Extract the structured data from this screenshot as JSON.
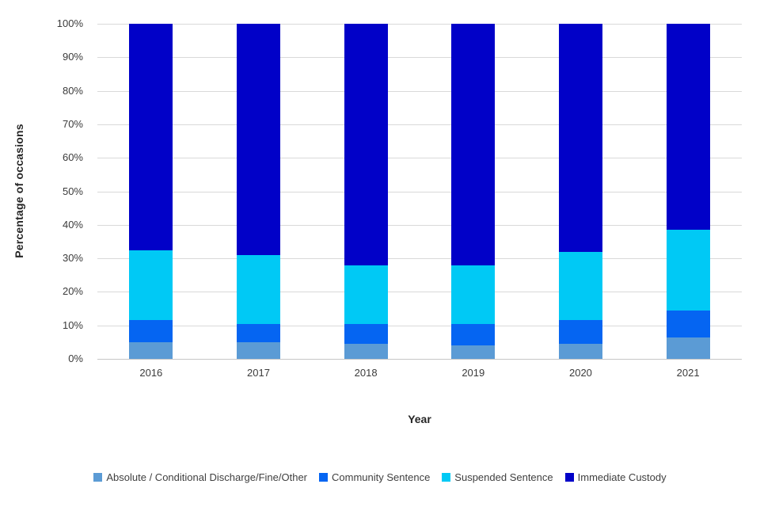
{
  "chart_data": {
    "type": "bar",
    "stacked": true,
    "percent_stacked": true,
    "title": "",
    "xlabel": "Year",
    "ylabel": "Percentage of occasions",
    "categories": [
      "2016",
      "2017",
      "2018",
      "2019",
      "2020",
      "2021"
    ],
    "series": [
      {
        "name": "Absolute / Conditional Discharge/Fine/Other",
        "color": "#5B9BD5",
        "values": [
          5,
          5,
          4.5,
          4,
          4.5,
          6.5
        ]
      },
      {
        "name": "Community Sentence",
        "color": "#0565F2",
        "values": [
          6.5,
          5.5,
          6,
          6.5,
          7,
          8
        ]
      },
      {
        "name": "Suspended Sentence",
        "color": "#00C9F5",
        "values": [
          21,
          20.5,
          17.5,
          17.5,
          20.5,
          24
        ]
      },
      {
        "name": "Immediate Custody",
        "color": "#0101C8",
        "values": [
          67.5,
          69,
          72,
          72,
          68,
          61.5
        ]
      }
    ],
    "yticks": [
      "0%",
      "10%",
      "20%",
      "30%",
      "40%",
      "50%",
      "60%",
      "70%",
      "80%",
      "90%",
      "100%"
    ],
    "ytick_values": [
      0,
      10,
      20,
      30,
      40,
      50,
      60,
      70,
      80,
      90,
      100
    ],
    "ylim": [
      0,
      100
    ],
    "grid": "horizontal",
    "gridline_color": "#D9D9D9",
    "legend_position": "bottom"
  }
}
